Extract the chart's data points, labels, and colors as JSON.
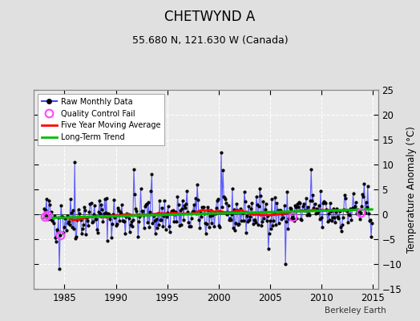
{
  "title": "CHETWYND A",
  "subtitle": "55.680 N, 121.630 W (Canada)",
  "ylabel_right": "Temperature Anomaly (°C)",
  "credit": "Berkeley Earth",
  "xlim": [
    1982.0,
    2015.5
  ],
  "ylim": [
    -15,
    25
  ],
  "yticks": [
    -15,
    -10,
    -5,
    0,
    5,
    10,
    15,
    20,
    25
  ],
  "xticks": [
    1985,
    1990,
    1995,
    2000,
    2005,
    2010,
    2015
  ],
  "bg_color": "#e0e0e0",
  "plot_bg_color": "#ebebeb",
  "raw_line_color": "#4444ff",
  "raw_marker_color": "#000000",
  "moving_avg_color": "#ff0000",
  "trend_color": "#00bb00",
  "qc_fail_color": "#ff44ff",
  "title_fontsize": 12,
  "subtitle_fontsize": 9,
  "seed": 42
}
